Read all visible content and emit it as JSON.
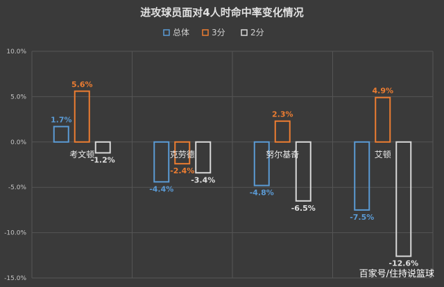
{
  "chart_data": {
    "type": "bar",
    "title": "进攻球员面对4人时命中率变化情况",
    "categories": [
      "考文顿",
      "克劳德",
      "努尔基奇",
      "艾顿"
    ],
    "series": [
      {
        "name": "总体",
        "color": "#5b9bd5",
        "values": [
          1.7,
          -4.4,
          -4.8,
          -7.5
        ],
        "labels": [
          "1.7%",
          "-4.4%",
          "-4.8%",
          "-7.5%"
        ]
      },
      {
        "name": "3分",
        "color": "#ed7d31",
        "values": [
          5.6,
          -2.4,
          2.3,
          4.9
        ],
        "labels": [
          "5.6%",
          "-2.4%",
          "2.3%",
          "4.9%"
        ]
      },
      {
        "name": "2分",
        "color": "#d9d9d9",
        "values": [
          -1.2,
          -3.4,
          -6.5,
          -12.6
        ],
        "labels": [
          "-1.2%",
          "-3.4%",
          "-6.5%",
          "-12.6%"
        ]
      }
    ],
    "ylim": [
      -15,
      10
    ],
    "yticks": [
      10,
      5,
      0,
      -5,
      -10,
      -15
    ],
    "ytick_labels": [
      "10.0%",
      "5.0%",
      "0.0%",
      "-5.0%",
      "-10.0%",
      "-15.0%"
    ],
    "legend": "top",
    "grid": true
  },
  "watermark": "百家号/住持说篮球"
}
